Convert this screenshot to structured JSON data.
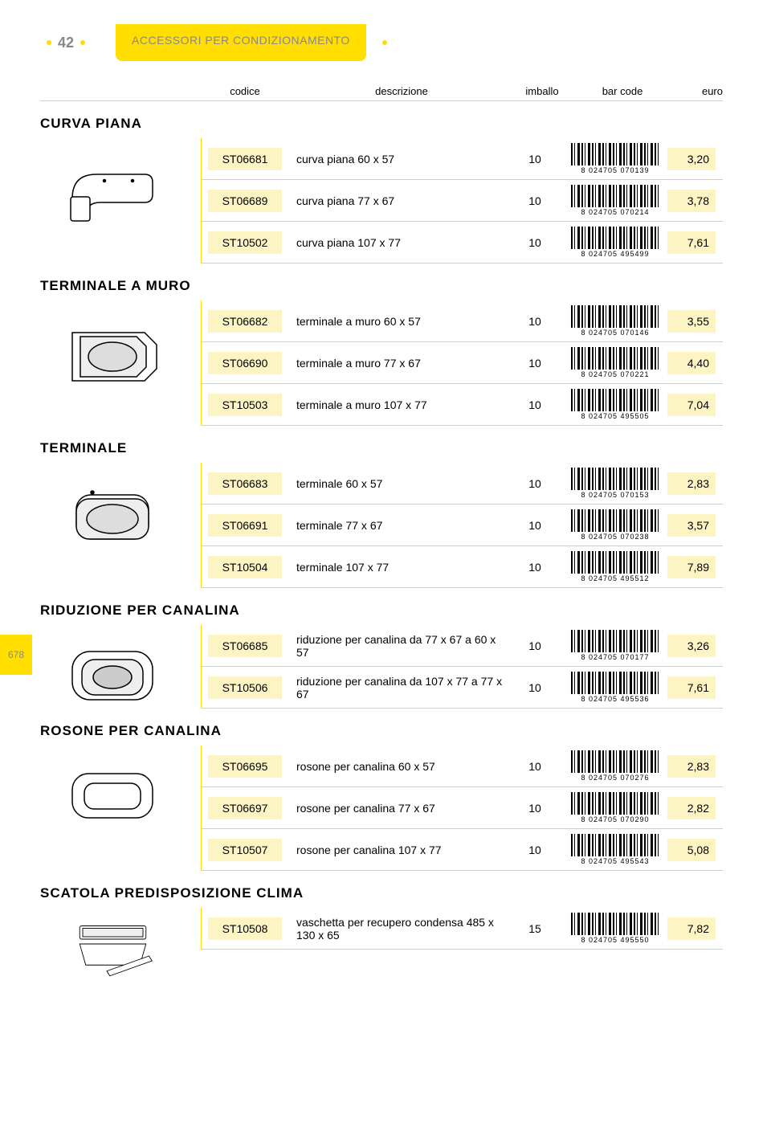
{
  "page_number": "42",
  "side_page_number": "678",
  "header_title": "ACCESSORI PER CONDIZIONAMENTO",
  "columns": {
    "codice": "codice",
    "descrizione": "descrizione",
    "imballo": "imballo",
    "barcode": "bar code",
    "euro": "euro"
  },
  "colors": {
    "accent": "#ffde00",
    "chip": "#fdf4c3",
    "muted_text": "#888888"
  },
  "sections": [
    {
      "title": "CURVA PIANA",
      "rows": [
        {
          "code": "ST06681",
          "desc": "curva piana  60 x 57",
          "imballo": "10",
          "barcode": "8 024705 070139",
          "euro": "3,20"
        },
        {
          "code": "ST06689",
          "desc": "curva piana  77 x 67",
          "imballo": "10",
          "barcode": "8 024705 070214",
          "euro": "3,78"
        },
        {
          "code": "ST10502",
          "desc": "curva piana 107 x 77",
          "imballo": "10",
          "barcode": "8 024705 495499",
          "euro": "7,61"
        }
      ]
    },
    {
      "title": "TERMINALE A MURO",
      "rows": [
        {
          "code": "ST06682",
          "desc": "terminale a muro  60 x 57",
          "imballo": "10",
          "barcode": "8 024705 070146",
          "euro": "3,55"
        },
        {
          "code": "ST06690",
          "desc": "terminale a muro  77 x 67",
          "imballo": "10",
          "barcode": "8 024705 070221",
          "euro": "4,40"
        },
        {
          "code": "ST10503",
          "desc": "terminale a muro 107 x 77",
          "imballo": "10",
          "barcode": "8 024705 495505",
          "euro": "7,04"
        }
      ]
    },
    {
      "title": "TERMINALE",
      "rows": [
        {
          "code": "ST06683",
          "desc": "terminale  60 x 57",
          "imballo": "10",
          "barcode": "8 024705 070153",
          "euro": "2,83"
        },
        {
          "code": "ST06691",
          "desc": "terminale  77 x 67",
          "imballo": "10",
          "barcode": "8 024705 070238",
          "euro": "3,57"
        },
        {
          "code": "ST10504",
          "desc": "terminale 107 x 77",
          "imballo": "10",
          "barcode": "8 024705 495512",
          "euro": "7,89"
        }
      ]
    },
    {
      "title": "RIDUZIONE PER CANALINA",
      "rows": [
        {
          "code": "ST06685",
          "desc": "riduzione per canalina da  77 x 67 a 60 x 57",
          "imballo": "10",
          "barcode": "8 024705 070177",
          "euro": "3,26"
        },
        {
          "code": "ST10506",
          "desc": "riduzione per canalina da 107 x 77 a 77 x 67",
          "imballo": "10",
          "barcode": "8 024705 495536",
          "euro": "7,61"
        }
      ]
    },
    {
      "title": "ROSONE PER CANALINA",
      "rows": [
        {
          "code": "ST06695",
          "desc": "rosone per canalina  60 x 57",
          "imballo": "10",
          "barcode": "8 024705 070276",
          "euro": "2,83"
        },
        {
          "code": "ST06697",
          "desc": "rosone per canalina  77 x 67",
          "imballo": "10",
          "barcode": "8 024705 070290",
          "euro": "2,82"
        },
        {
          "code": "ST10507",
          "desc": "rosone per canalina 107 x 77",
          "imballo": "10",
          "barcode": "8 024705 495543",
          "euro": "5,08"
        }
      ]
    },
    {
      "title": "SCATOLA PREDISPOSIZIONE CLIMA",
      "rows": [
        {
          "code": "ST10508",
          "desc": "vaschetta per recupero condensa 485 x 130 x 65",
          "imballo": "15",
          "barcode": "8 024705 495550",
          "euro": "7,82"
        }
      ]
    }
  ]
}
